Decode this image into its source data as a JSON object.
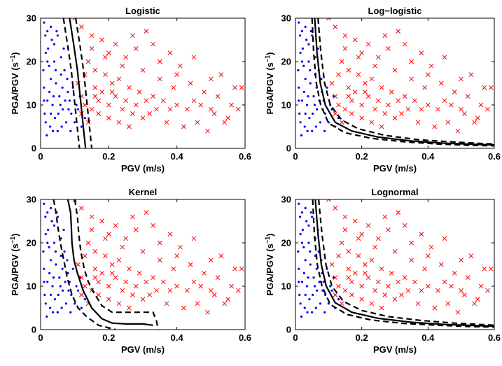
{
  "chart_data": [
    {
      "type": "scatter",
      "title": "Logistic",
      "xlabel": "PGV (m/s)",
      "ylabel": "PGA/PGV (s",
      "ylabel_sup": "−1",
      "ylabel_close": ")",
      "xlim": [
        0,
        0.6
      ],
      "ylim": [
        0,
        30
      ],
      "xticks": [
        "0",
        "0.2",
        "0.4",
        "0.6"
      ],
      "yticks": [
        "0",
        "10",
        "20",
        "30"
      ],
      "curves": {
        "main": [
          [
            0.085,
            30
          ],
          [
            0.097,
            24
          ],
          [
            0.108,
            18
          ],
          [
            0.116,
            12
          ],
          [
            0.124,
            6
          ],
          [
            0.132,
            0
          ]
        ],
        "upper": [
          [
            0.103,
            30
          ],
          [
            0.115,
            24
          ],
          [
            0.126,
            18
          ],
          [
            0.134,
            12
          ],
          [
            0.142,
            6
          ],
          [
            0.15,
            0
          ]
        ],
        "lower": [
          [
            0.067,
            30
          ],
          [
            0.079,
            24
          ],
          [
            0.09,
            18
          ],
          [
            0.098,
            12
          ],
          [
            0.106,
            6
          ],
          [
            0.114,
            0
          ]
        ]
      }
    },
    {
      "type": "scatter",
      "title": "Log−logistic",
      "xlabel": "PGV (m/s)",
      "ylabel": "PGA/PGV (s",
      "ylabel_sup": "−1",
      "ylabel_close": ")",
      "xlim": [
        0,
        0.6
      ],
      "ylim": [
        0,
        30
      ],
      "xticks": [
        "0",
        "0.2",
        "0.4",
        "0.6"
      ],
      "yticks": [
        "0",
        "10",
        "20",
        "30"
      ],
      "curves": {
        "main": [
          [
            0.058,
            30
          ],
          [
            0.065,
            22
          ],
          [
            0.075,
            15
          ],
          [
            0.09,
            10
          ],
          [
            0.12,
            6
          ],
          [
            0.17,
            4
          ],
          [
            0.25,
            2.6
          ],
          [
            0.35,
            1.7
          ],
          [
            0.45,
            1.2
          ],
          [
            0.55,
            0.9
          ],
          [
            0.6,
            0.8
          ]
        ],
        "upper": [
          [
            0.068,
            30
          ],
          [
            0.077,
            22
          ],
          [
            0.088,
            15
          ],
          [
            0.105,
            10
          ],
          [
            0.14,
            6.5
          ],
          [
            0.19,
            4.5
          ],
          [
            0.27,
            3
          ],
          [
            0.37,
            2
          ],
          [
            0.47,
            1.5
          ],
          [
            0.57,
            1.1
          ],
          [
            0.6,
            1
          ]
        ],
        "lower": [
          [
            0.05,
            30
          ],
          [
            0.055,
            22
          ],
          [
            0.063,
            15
          ],
          [
            0.076,
            10
          ],
          [
            0.1,
            5.8
          ],
          [
            0.15,
            3.6
          ],
          [
            0.23,
            2.3
          ],
          [
            0.33,
            1.5
          ],
          [
            0.43,
            1
          ],
          [
            0.53,
            0.7
          ],
          [
            0.6,
            0.6
          ]
        ]
      }
    },
    {
      "type": "scatter",
      "title": "Kernel",
      "xlabel": "PGV (m/s)",
      "ylabel": "PGA/PGV (s",
      "ylabel_sup": "−1",
      "ylabel_close": ")",
      "xlim": [
        0,
        0.6
      ],
      "ylim": [
        0,
        30
      ],
      "xticks": [
        "0",
        "0.2",
        "0.4",
        "0.6"
      ],
      "yticks": [
        "0",
        "10",
        "20",
        "30"
      ],
      "curves": {
        "main": [
          [
            0.08,
            30
          ],
          [
            0.088,
            27
          ],
          [
            0.09,
            24
          ],
          [
            0.092,
            20
          ],
          [
            0.098,
            16
          ],
          [
            0.108,
            13
          ],
          [
            0.125,
            9
          ],
          [
            0.15,
            5
          ],
          [
            0.18,
            2.5
          ],
          [
            0.21,
            1.5
          ],
          [
            0.25,
            1.3
          ],
          [
            0.3,
            1.3
          ],
          [
            0.33,
            1
          ]
        ],
        "upper": [
          [
            0.1,
            30
          ],
          [
            0.108,
            26
          ],
          [
            0.112,
            22
          ],
          [
            0.118,
            18
          ],
          [
            0.128,
            14
          ],
          [
            0.14,
            11
          ],
          [
            0.16,
            8
          ],
          [
            0.18,
            5.5
          ],
          [
            0.21,
            4
          ],
          [
            0.27,
            4
          ],
          [
            0.33,
            4
          ],
          [
            0.34,
            2
          ],
          [
            0.345,
            0
          ]
        ],
        "lower": [
          [
            0.038,
            30
          ],
          [
            0.045,
            27
          ],
          [
            0.05,
            24
          ],
          [
            0.058,
            20
          ],
          [
            0.068,
            16
          ],
          [
            0.078,
            12
          ],
          [
            0.092,
            8
          ],
          [
            0.11,
            5
          ],
          [
            0.135,
            3
          ],
          [
            0.17,
            1
          ],
          [
            0.2,
            0.4
          ],
          [
            0.22,
            0
          ]
        ]
      }
    },
    {
      "type": "scatter",
      "title": "Lognormal",
      "xlabel": "PGV (m/s)",
      "ylabel": "PGA/PGV (s",
      "ylabel_sup": "−1",
      "ylabel_close": ")",
      "xlim": [
        0,
        0.6
      ],
      "ylim": [
        0,
        30
      ],
      "xticks": [
        "0",
        "0.2",
        "0.4",
        "0.6"
      ],
      "yticks": [
        "0",
        "10",
        "20",
        "30"
      ],
      "curves": {
        "main": [
          [
            0.06,
            30
          ],
          [
            0.068,
            22
          ],
          [
            0.078,
            15
          ],
          [
            0.093,
            10
          ],
          [
            0.12,
            6.2
          ],
          [
            0.17,
            4
          ],
          [
            0.25,
            2.6
          ],
          [
            0.35,
            1.7
          ],
          [
            0.45,
            1.2
          ],
          [
            0.55,
            0.9
          ],
          [
            0.6,
            0.8
          ]
        ],
        "upper": [
          [
            0.07,
            30
          ],
          [
            0.08,
            22
          ],
          [
            0.092,
            15
          ],
          [
            0.11,
            10
          ],
          [
            0.145,
            6.5
          ],
          [
            0.2,
            4.4
          ],
          [
            0.28,
            3
          ],
          [
            0.38,
            2.1
          ],
          [
            0.48,
            1.5
          ],
          [
            0.58,
            1.1
          ],
          [
            0.6,
            1
          ]
        ],
        "lower": [
          [
            0.052,
            30
          ],
          [
            0.057,
            22
          ],
          [
            0.066,
            15
          ],
          [
            0.08,
            10
          ],
          [
            0.105,
            5.8
          ],
          [
            0.155,
            3.5
          ],
          [
            0.23,
            2.2
          ],
          [
            0.33,
            1.4
          ],
          [
            0.43,
            1
          ],
          [
            0.53,
            0.7
          ],
          [
            0.6,
            0.6
          ]
        ]
      }
    }
  ],
  "colors": {
    "class_a_dots": "#0000ff",
    "class_b_crosses": "#ff0000",
    "curves": "#000000"
  },
  "marker_sets": {
    "dots": [
      [
        0.01,
        29
      ],
      [
        0.02,
        27
      ],
      [
        0.03,
        28
      ],
      [
        0.05,
        26
      ],
      [
        0.04,
        24
      ],
      [
        0.015,
        22
      ],
      [
        0.06,
        21
      ],
      [
        0.025,
        19
      ],
      [
        0.07,
        18
      ],
      [
        0.03,
        16
      ],
      [
        0.045,
        15
      ],
      [
        0.01,
        14
      ],
      [
        0.08,
        13
      ],
      [
        0.055,
        12
      ],
      [
        0.02,
        11
      ],
      [
        0.035,
        10
      ],
      [
        0.065,
        9
      ],
      [
        0.012,
        8
      ],
      [
        0.042,
        7
      ],
      [
        0.075,
        6
      ],
      [
        0.028,
        5
      ],
      [
        0.05,
        4
      ],
      [
        0.018,
        3
      ],
      [
        0.09,
        8
      ],
      [
        0.1,
        6
      ],
      [
        0.11,
        9
      ],
      [
        0.12,
        5
      ],
      [
        0.13,
        7
      ],
      [
        0.085,
        11
      ],
      [
        0.095,
        14
      ],
      [
        0.06,
        17
      ],
      [
        0.04,
        20
      ],
      [
        0.022,
        23
      ],
      [
        0.033,
        25
      ],
      [
        0.047,
        27
      ],
      [
        0.014,
        26
      ],
      [
        0.068,
        23
      ],
      [
        0.078,
        16
      ],
      [
        0.038,
        12
      ],
      [
        0.058,
        10
      ],
      [
        0.008,
        18
      ],
      [
        0.026,
        13
      ],
      [
        0.052,
        8
      ],
      [
        0.072,
        11
      ],
      [
        0.105,
        10
      ],
      [
        0.115,
        12
      ],
      [
        0.015,
        6
      ],
      [
        0.036,
        4
      ],
      [
        0.062,
        5
      ],
      [
        0.088,
        4
      ],
      [
        0.02,
        20
      ],
      [
        0.044,
        18
      ],
      [
        0.064,
        14
      ],
      [
        0.082,
        9
      ],
      [
        0.01,
        11
      ],
      [
        0.03,
        8
      ]
    ],
    "crosses": [
      [
        0.1,
        30
      ],
      [
        0.12,
        28
      ],
      [
        0.15,
        26
      ],
      [
        0.18,
        25
      ],
      [
        0.2,
        22
      ],
      [
        0.22,
        24
      ],
      [
        0.25,
        21
      ],
      [
        0.28,
        23
      ],
      [
        0.31,
        27
      ],
      [
        0.35,
        20
      ],
      [
        0.38,
        22
      ],
      [
        0.41,
        19
      ],
      [
        0.45,
        21
      ],
      [
        0.5,
        16
      ],
      [
        0.53,
        17
      ],
      [
        0.57,
        14
      ],
      [
        0.59,
        14
      ],
      [
        0.14,
        20
      ],
      [
        0.16,
        18
      ],
      [
        0.19,
        17
      ],
      [
        0.21,
        15
      ],
      [
        0.23,
        16
      ],
      [
        0.26,
        14
      ],
      [
        0.29,
        13
      ],
      [
        0.33,
        12
      ],
      [
        0.36,
        11
      ],
      [
        0.4,
        10
      ],
      [
        0.43,
        9
      ],
      [
        0.47,
        10
      ],
      [
        0.51,
        8
      ],
      [
        0.55,
        7
      ],
      [
        0.58,
        9
      ],
      [
        0.12,
        12
      ],
      [
        0.13,
        10
      ],
      [
        0.15,
        9
      ],
      [
        0.17,
        11
      ],
      [
        0.2,
        10
      ],
      [
        0.24,
        9
      ],
      [
        0.27,
        8
      ],
      [
        0.3,
        7
      ],
      [
        0.34,
        9
      ],
      [
        0.37,
        6
      ],
      [
        0.42,
        5
      ],
      [
        0.46,
        6
      ],
      [
        0.49,
        4
      ],
      [
        0.11,
        15
      ],
      [
        0.13,
        17
      ],
      [
        0.16,
        14
      ],
      [
        0.18,
        13
      ],
      [
        0.22,
        12
      ],
      [
        0.25,
        11
      ],
      [
        0.28,
        10
      ],
      [
        0.32,
        8
      ],
      [
        0.39,
        14
      ],
      [
        0.44,
        15
      ],
      [
        0.48,
        13
      ],
      [
        0.52,
        12
      ],
      [
        0.56,
        10
      ],
      [
        0.17,
        8
      ],
      [
        0.2,
        7
      ],
      [
        0.23,
        6
      ],
      [
        0.26,
        5
      ],
      [
        0.14,
        6
      ],
      [
        0.19,
        21
      ],
      [
        0.24,
        19
      ],
      [
        0.3,
        18
      ],
      [
        0.35,
        16
      ],
      [
        0.4,
        17
      ],
      [
        0.33,
        24
      ],
      [
        0.27,
        26
      ],
      [
        0.15,
        23
      ],
      [
        0.21,
        13
      ],
      [
        0.31,
        11
      ],
      [
        0.38,
        9
      ],
      [
        0.45,
        11
      ],
      [
        0.5,
        9
      ],
      [
        0.54,
        6
      ],
      [
        0.12,
        8
      ],
      [
        0.16,
        12
      ]
    ]
  }
}
